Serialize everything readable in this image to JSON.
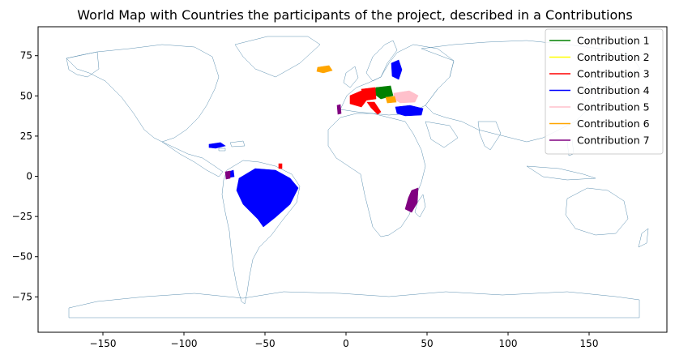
{
  "chart_data": {
    "type": "map",
    "title": "World Map with Countries the participants of the project, described in a Contributions",
    "xlim": [
      -190,
      198
    ],
    "ylim": [
      -97,
      93
    ],
    "x_ticks": [
      -150,
      -100,
      -50,
      0,
      50,
      100,
      150
    ],
    "y_ticks": [
      -75,
      -50,
      -25,
      0,
      25,
      50,
      75
    ],
    "x_tick_labels": [
      "−150",
      "−100",
      "−50",
      "0",
      "50",
      "100",
      "150"
    ],
    "y_tick_labels": [
      "−75",
      "−50",
      "−25",
      "0",
      "25",
      "50",
      "75"
    ],
    "legend_position": "top-right",
    "outline_color": "#5b8fb0",
    "series": [
      {
        "name": "Contribution 1",
        "color": "#008000",
        "countries": [
          "Poland"
        ]
      },
      {
        "name": "Contribution 2",
        "color": "#ffff00",
        "countries": []
      },
      {
        "name": "Contribution 3",
        "color": "#ff0000",
        "countries": [
          "France",
          "Germany",
          "Italy",
          "French Guiana"
        ]
      },
      {
        "name": "Contribution 4",
        "color": "#0000ff",
        "countries": [
          "Brazil",
          "Turkey",
          "Finland",
          "Cuba",
          "Costa Rica"
        ]
      },
      {
        "name": "Contribution 5",
        "color": "#ffc0cb",
        "countries": [
          "Ukraine"
        ]
      },
      {
        "name": "Contribution 6",
        "color": "#ffa500",
        "countries": [
          "Iceland",
          "Hungary"
        ]
      },
      {
        "name": "Contribution 7",
        "color": "#800080",
        "countries": [
          "Mozambique",
          "Portugal",
          "Ecuador"
        ]
      }
    ]
  }
}
